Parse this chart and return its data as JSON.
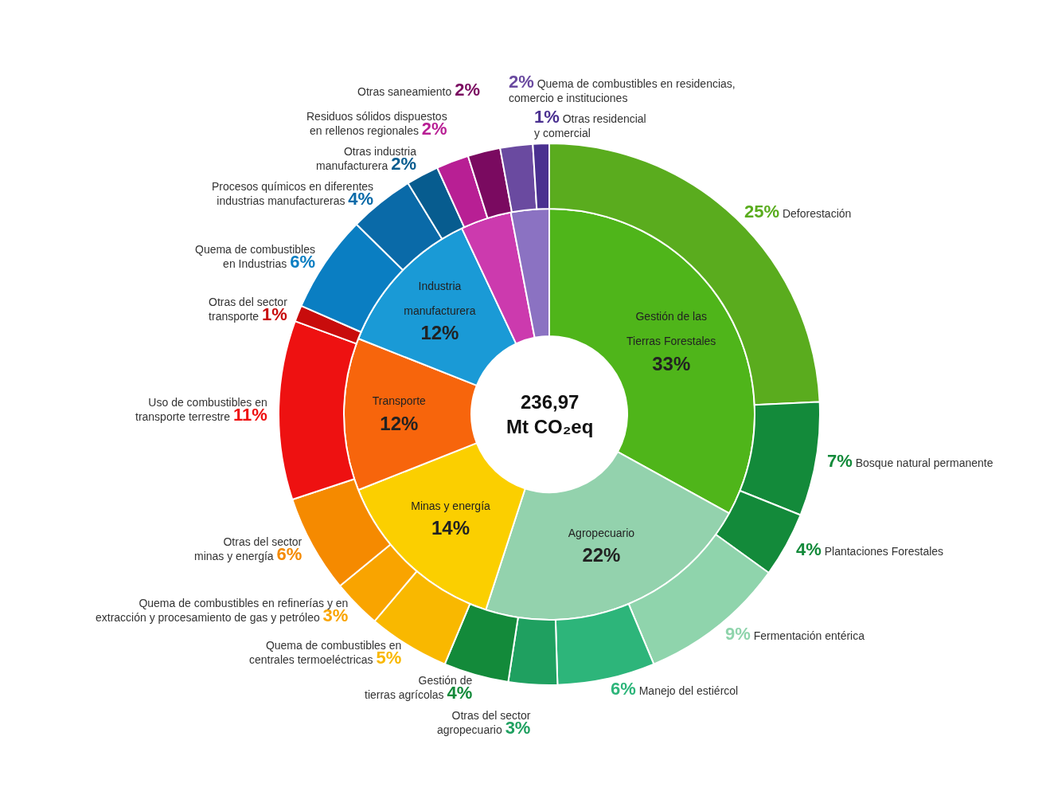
{
  "chart_data": [
    {
      "type": "donut",
      "annotations": [
        "236,97 Mt CO₂eq"
      ],
      "categories": [
        "Gestión de las Tierras Forestales",
        "Agropecuario",
        "Minas y energía",
        "Transporte",
        "Industria manufacturera",
        null,
        null
      ],
      "values": [
        33,
        22,
        14,
        12,
        12,
        4,
        3
      ],
      "colors": [
        "#4fb51a",
        "#93d2ad",
        "#fbcf00",
        "#f7650c",
        "#1a9ad6",
        "#cc3aae",
        "#8b72c2"
      ],
      "value_labels": [
        "33%",
        "22%",
        "14%",
        "12%",
        "12%",
        null,
        null
      ]
    },
    {
      "type": "donut",
      "categories": [
        "Deforestación",
        "Bosque natural permanente",
        "Plantaciones Forestales",
        "Fermentación entérica",
        "Manejo del estiércol",
        "Otras del sector agropecuario",
        "Gestión de tierras agrícolas",
        "Quema de combustibles en centrales termoeléctricas",
        "Quema de combustibles en refinerías y en extracción y procesamiento de gas y petróleo",
        "Otras del sector minas y energía",
        "Uso de combustibles en transporte terrestre",
        "Otras del sector transporte",
        "Quema de combustibles en Industrias",
        "Procesos químicos en diferentes industrias manufactureras",
        "Otras industria manufacturera",
        "Residuos sólidos dispuestos en rellenos regionales",
        "Otras saneamiento",
        "Quema de combustibles en residencias, comercio e instituciones",
        "Otras residencial y comercial"
      ],
      "values": [
        25,
        7,
        4,
        9,
        6,
        3,
        4,
        5,
        3,
        6,
        11,
        1,
        6,
        4,
        2,
        2,
        2,
        2,
        1
      ],
      "colors": [
        "#5aac1e",
        "#138a3a",
        "#138a3a",
        "#8fd4ac",
        "#2db57a",
        "#1fa060",
        "#138a3a",
        "#f9b800",
        "#f9a400",
        "#f58a00",
        "#ee1111",
        "#c80c0c",
        "#0a7ec2",
        "#0a6aa8",
        "#075c8f",
        "#b81f94",
        "#7a0a60",
        "#6a4aa0",
        "#4a3090"
      ],
      "value_labels": [
        "25%",
        "7%",
        "4%",
        "9%",
        "6%",
        "3%",
        "4%",
        "5%",
        "3%",
        "6%",
        "11%",
        "1%",
        "6%",
        "4%",
        "2%",
        "2%",
        "2%",
        "2%",
        "1%"
      ]
    }
  ]
}
